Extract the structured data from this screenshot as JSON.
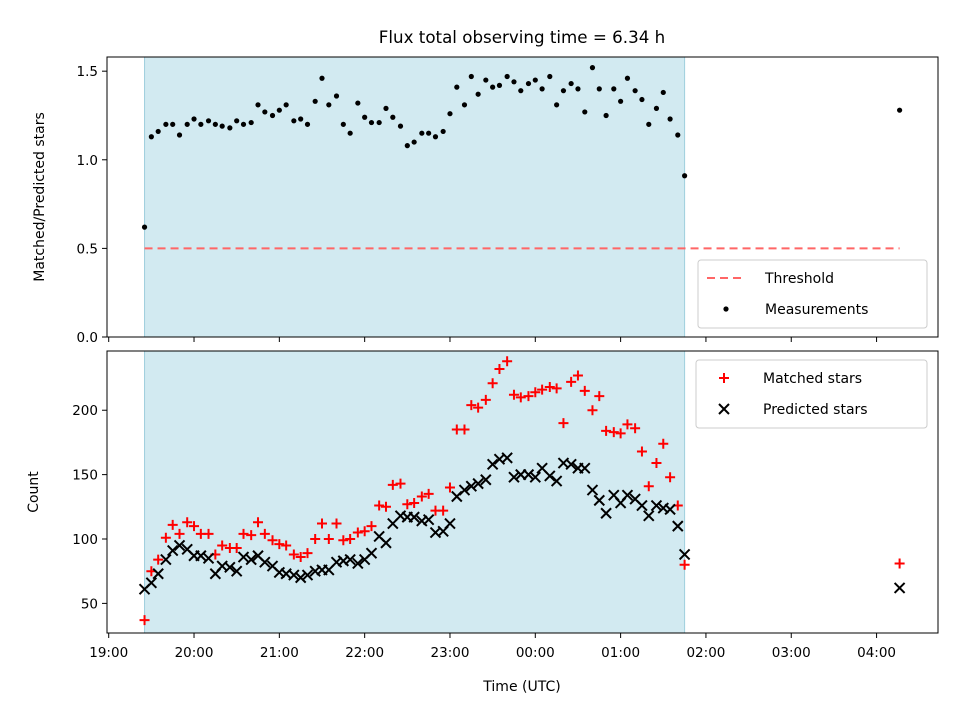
{
  "colors": {
    "background": "#ffffff",
    "shade": "#add8e6",
    "threshold": "#ff6666",
    "measurements": "#000000",
    "matched": "#ff0000",
    "predicted": "#000000"
  },
  "figure": {
    "title": "Flux total observing time = 6.34 h",
    "xlabel": "Time (UTC)",
    "xticks": [
      "19:00",
      "20:00",
      "21:00",
      "22:00",
      "23:00",
      "00:00",
      "01:00",
      "02:00",
      "03:00",
      "04:00"
    ]
  },
  "chart_data": [
    {
      "type": "scatter",
      "ylabel": "Matched/Predicted stars",
      "ylim": [
        0,
        1.58
      ],
      "yticks": [
        "0.0",
        "0.5",
        "1.0",
        "1.5"
      ],
      "xlim_hours": [
        18.98,
        28.72
      ],
      "shaded_interval_hours": [
        19.42,
        25.75
      ],
      "legend": {
        "position": "lower-right",
        "entries": [
          "Threshold",
          "Measurements"
        ]
      },
      "threshold": {
        "name": "Threshold",
        "value": 0.5,
        "x_range_hours": [
          19.42,
          28.27
        ]
      },
      "series": [
        {
          "name": "Measurements",
          "x_hours": [
            19.42,
            19.5,
            19.58,
            19.67,
            19.75,
            19.83,
            19.92,
            20.0,
            20.08,
            20.17,
            20.25,
            20.33,
            20.42,
            20.5,
            20.58,
            20.67,
            20.75,
            20.83,
            20.92,
            21.0,
            21.08,
            21.17,
            21.25,
            21.33,
            21.42,
            21.5,
            21.58,
            21.67,
            21.75,
            21.83,
            21.92,
            22.0,
            22.08,
            22.17,
            22.25,
            22.33,
            22.42,
            22.5,
            22.58,
            22.67,
            22.75,
            22.83,
            22.92,
            23.0,
            23.08,
            23.17,
            23.25,
            23.33,
            23.42,
            23.5,
            23.58,
            23.67,
            23.75,
            23.83,
            23.92,
            24.0,
            24.08,
            24.17,
            24.25,
            24.33,
            24.42,
            24.5,
            24.58,
            24.67,
            24.75,
            24.83,
            24.92,
            25.0,
            25.08,
            25.17,
            25.25,
            25.33,
            25.42,
            25.5,
            25.58,
            25.67,
            25.75,
            28.27
          ],
          "y": [
            0.62,
            1.13,
            1.16,
            1.2,
            1.2,
            1.14,
            1.2,
            1.23,
            1.2,
            1.22,
            1.2,
            1.19,
            1.18,
            1.22,
            1.2,
            1.21,
            1.31,
            1.27,
            1.25,
            1.28,
            1.31,
            1.22,
            1.23,
            1.2,
            1.33,
            1.46,
            1.31,
            1.36,
            1.2,
            1.15,
            1.32,
            1.24,
            1.21,
            1.21,
            1.29,
            1.24,
            1.19,
            1.08,
            1.1,
            1.15,
            1.15,
            1.13,
            1.16,
            1.26,
            1.41,
            1.31,
            1.47,
            1.37,
            1.45,
            1.41,
            1.42,
            1.47,
            1.44,
            1.39,
            1.43,
            1.45,
            1.4,
            1.47,
            1.31,
            1.39,
            1.43,
            1.4,
            1.27,
            1.52,
            1.4,
            1.25,
            1.4,
            1.33,
            1.46,
            1.39,
            1.34,
            1.2,
            1.29,
            1.38,
            1.23,
            1.14,
            0.91,
            1.28
          ]
        }
      ]
    },
    {
      "type": "scatter",
      "ylabel": "Count",
      "ylim": [
        27,
        246
      ],
      "yticks": [
        "50",
        "100",
        "150",
        "200"
      ],
      "xlim_hours": [
        18.98,
        28.72
      ],
      "shaded_interval_hours": [
        19.42,
        25.75
      ],
      "legend": {
        "position": "upper-right",
        "entries": [
          "Matched stars",
          "Predicted stars"
        ]
      },
      "series": [
        {
          "name": "Matched stars",
          "marker": "plus",
          "x_hours": [
            19.42,
            19.5,
            19.58,
            19.67,
            19.75,
            19.83,
            19.92,
            20.0,
            20.08,
            20.17,
            20.25,
            20.33,
            20.42,
            20.5,
            20.58,
            20.67,
            20.75,
            20.83,
            20.92,
            21.0,
            21.08,
            21.17,
            21.25,
            21.33,
            21.42,
            21.5,
            21.58,
            21.67,
            21.75,
            21.83,
            21.92,
            22.0,
            22.08,
            22.17,
            22.25,
            22.33,
            22.42,
            22.5,
            22.58,
            22.67,
            22.75,
            22.83,
            22.92,
            23.0,
            23.08,
            23.17,
            23.25,
            23.33,
            23.42,
            23.5,
            23.58,
            23.67,
            23.75,
            23.83,
            23.92,
            24.0,
            24.08,
            24.17,
            24.25,
            24.33,
            24.42,
            24.5,
            24.58,
            24.67,
            24.75,
            24.83,
            24.92,
            25.0,
            25.08,
            25.17,
            25.25,
            25.33,
            25.42,
            25.5,
            25.58,
            25.67,
            25.75,
            28.27
          ],
          "y": [
            37,
            75,
            84,
            101,
            111,
            104,
            113,
            110,
            104,
            104,
            88,
            95,
            93,
            93,
            104,
            103,
            113,
            104,
            99,
            96,
            95,
            88,
            86,
            89,
            100,
            112,
            100,
            112,
            99,
            100,
            105,
            106,
            110,
            126,
            125,
            142,
            143,
            127,
            128,
            133,
            135,
            122,
            122,
            140,
            185,
            185,
            204,
            202,
            208,
            221,
            232,
            238,
            212,
            210,
            211,
            214,
            216,
            218,
            217,
            190,
            222,
            227,
            215,
            200,
            211,
            184,
            183,
            182,
            189,
            186,
            168,
            141,
            159,
            174,
            148,
            126,
            80,
            81
          ]
        },
        {
          "name": "Predicted stars",
          "marker": "x",
          "x_hours": [
            19.42,
            19.5,
            19.58,
            19.67,
            19.75,
            19.83,
            19.92,
            20.0,
            20.08,
            20.17,
            20.25,
            20.33,
            20.42,
            20.5,
            20.58,
            20.67,
            20.75,
            20.83,
            20.92,
            21.0,
            21.08,
            21.17,
            21.25,
            21.33,
            21.42,
            21.5,
            21.58,
            21.67,
            21.75,
            21.83,
            21.92,
            22.0,
            22.08,
            22.17,
            22.25,
            22.33,
            22.42,
            22.5,
            22.58,
            22.67,
            22.75,
            22.83,
            22.92,
            23.0,
            23.08,
            23.17,
            23.25,
            23.33,
            23.42,
            23.5,
            23.58,
            23.67,
            23.75,
            23.83,
            23.92,
            24.0,
            24.08,
            24.17,
            24.25,
            24.33,
            24.42,
            24.5,
            24.58,
            24.67,
            24.75,
            24.83,
            24.92,
            25.0,
            25.08,
            25.17,
            25.25,
            25.33,
            25.42,
            25.5,
            25.58,
            25.67,
            25.75,
            28.27
          ],
          "y": [
            61,
            66,
            73,
            84,
            91,
            95,
            92,
            87,
            87,
            85,
            73,
            79,
            78,
            75,
            86,
            84,
            87,
            82,
            79,
            74,
            73,
            72,
            70,
            72,
            75,
            76,
            76,
            82,
            83,
            84,
            81,
            84,
            89,
            102,
            97,
            112,
            118,
            117,
            117,
            114,
            115,
            105,
            106,
            112,
            133,
            138,
            141,
            143,
            146,
            158,
            162,
            163,
            148,
            150,
            150,
            148,
            155,
            149,
            145,
            159,
            158,
            155,
            155,
            138,
            130,
            120,
            134,
            128,
            134,
            131,
            126,
            118,
            126,
            124,
            123,
            110,
            88,
            62
          ]
        }
      ]
    }
  ]
}
